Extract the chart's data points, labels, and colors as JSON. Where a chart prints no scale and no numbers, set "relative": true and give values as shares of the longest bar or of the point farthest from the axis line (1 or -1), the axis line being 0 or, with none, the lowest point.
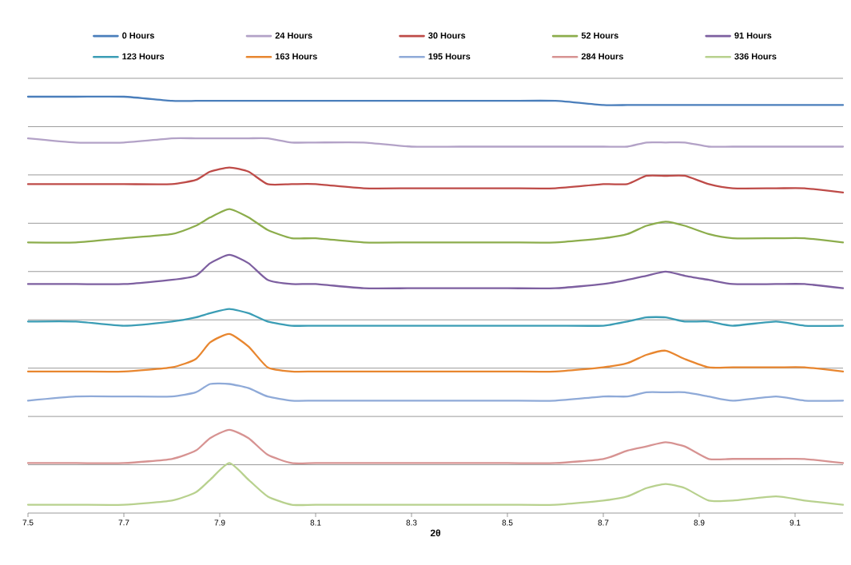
{
  "chart_data": {
    "type": "line",
    "relative": true,
    "xlabel": "2θ",
    "x": [
      7.5,
      7.6,
      7.7,
      7.8,
      7.85,
      7.88,
      7.92,
      7.96,
      8.0,
      8.05,
      8.1,
      8.2,
      8.3,
      8.4,
      8.5,
      8.6,
      8.7,
      8.75,
      8.79,
      8.83,
      8.87,
      8.92,
      8.97,
      9.06,
      9.12,
      9.2
    ],
    "xlim": [
      7.5,
      9.2
    ],
    "xticks": [
      {
        "value": 7.5,
        "label": "7.5"
      },
      {
        "value": 7.7,
        "label": "7.7"
      },
      {
        "value": 7.9,
        "label": "7.9"
      },
      {
        "value": 8.1,
        "label": "8.1"
      },
      {
        "value": 8.3,
        "label": "8.3"
      },
      {
        "value": 8.5,
        "label": "8.5"
      },
      {
        "value": 8.7,
        "label": "8.7"
      },
      {
        "value": 8.9,
        "label": "8.9"
      },
      {
        "value": 9.1,
        "label": "9.1"
      }
    ],
    "grid": "y",
    "legend": "top",
    "marker": "none",
    "line_style": "solid",
    "series": [
      {
        "name": "0 Hours",
        "color": "#4a7ebb",
        "values": [
          1.0,
          1.0,
          1.0,
          0.99,
          0.99,
          0.99,
          0.99,
          0.99,
          0.99,
          0.99,
          0.99,
          0.99,
          0.99,
          0.99,
          0.99,
          0.99,
          0.98,
          0.98,
          0.98,
          0.98,
          0.98,
          0.98,
          0.98,
          0.98,
          0.98,
          0.98
        ]
      },
      {
        "name": "24 Hours",
        "color": "#b3a2c7",
        "values": [
          0.9,
          0.89,
          0.89,
          0.9,
          0.9,
          0.9,
          0.9,
          0.9,
          0.9,
          0.89,
          0.89,
          0.89,
          0.88,
          0.88,
          0.88,
          0.88,
          0.88,
          0.88,
          0.89,
          0.89,
          0.89,
          0.88,
          0.88,
          0.88,
          0.88,
          0.88
        ]
      },
      {
        "name": "30 Hours",
        "color": "#be4b48",
        "values": [
          0.79,
          0.79,
          0.79,
          0.79,
          0.8,
          0.82,
          0.83,
          0.82,
          0.79,
          0.79,
          0.79,
          0.78,
          0.78,
          0.78,
          0.78,
          0.78,
          0.79,
          0.79,
          0.81,
          0.81,
          0.81,
          0.79,
          0.78,
          0.78,
          0.78,
          0.77
        ]
      },
      {
        "name": "52 Hours",
        "color": "#8cad4c",
        "values": [
          0.65,
          0.65,
          0.66,
          0.67,
          0.69,
          0.71,
          0.73,
          0.71,
          0.68,
          0.66,
          0.66,
          0.65,
          0.65,
          0.65,
          0.65,
          0.65,
          0.66,
          0.67,
          0.69,
          0.7,
          0.69,
          0.67,
          0.66,
          0.66,
          0.66,
          0.65
        ]
      },
      {
        "name": "91 Hours",
        "color": "#7d5fa0",
        "values": [
          0.55,
          0.55,
          0.55,
          0.56,
          0.57,
          0.6,
          0.62,
          0.6,
          0.56,
          0.55,
          0.55,
          0.54,
          0.54,
          0.54,
          0.54,
          0.54,
          0.55,
          0.56,
          0.57,
          0.58,
          0.57,
          0.56,
          0.55,
          0.55,
          0.55,
          0.54
        ]
      },
      {
        "name": "123 Hours",
        "color": "#3b9db5",
        "values": [
          0.46,
          0.46,
          0.45,
          0.46,
          0.47,
          0.48,
          0.49,
          0.48,
          0.46,
          0.45,
          0.45,
          0.45,
          0.45,
          0.45,
          0.45,
          0.45,
          0.45,
          0.46,
          0.47,
          0.47,
          0.46,
          0.46,
          0.45,
          0.46,
          0.45,
          0.45
        ]
      },
      {
        "name": "163 Hours",
        "color": "#e8862f",
        "values": [
          0.34,
          0.34,
          0.34,
          0.35,
          0.37,
          0.41,
          0.43,
          0.4,
          0.35,
          0.34,
          0.34,
          0.34,
          0.34,
          0.34,
          0.34,
          0.34,
          0.35,
          0.36,
          0.38,
          0.39,
          0.37,
          0.35,
          0.35,
          0.35,
          0.35,
          0.34
        ]
      },
      {
        "name": "195 Hours",
        "color": "#8faad8",
        "values": [
          0.27,
          0.28,
          0.28,
          0.28,
          0.29,
          0.31,
          0.31,
          0.3,
          0.28,
          0.27,
          0.27,
          0.27,
          0.27,
          0.27,
          0.27,
          0.27,
          0.28,
          0.28,
          0.29,
          0.29,
          0.29,
          0.28,
          0.27,
          0.28,
          0.27,
          0.27
        ]
      },
      {
        "name": "284 Hours",
        "color": "#d79392",
        "values": [
          0.12,
          0.12,
          0.12,
          0.13,
          0.15,
          0.18,
          0.2,
          0.18,
          0.14,
          0.12,
          0.12,
          0.12,
          0.12,
          0.12,
          0.12,
          0.12,
          0.13,
          0.15,
          0.16,
          0.17,
          0.16,
          0.13,
          0.13,
          0.13,
          0.13,
          0.12
        ]
      },
      {
        "name": "336 Hours",
        "color": "#b8d18e",
        "values": [
          0.02,
          0.02,
          0.02,
          0.03,
          0.05,
          0.08,
          0.12,
          0.08,
          0.04,
          0.02,
          0.02,
          0.02,
          0.02,
          0.02,
          0.02,
          0.02,
          0.03,
          0.04,
          0.06,
          0.07,
          0.06,
          0.03,
          0.03,
          0.04,
          0.03,
          0.02
        ]
      }
    ]
  }
}
